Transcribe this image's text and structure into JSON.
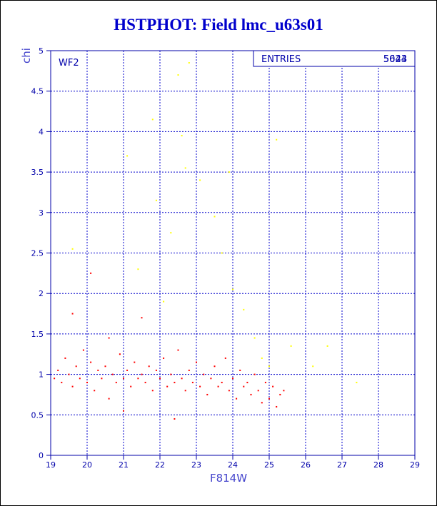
{
  "chart_data": {
    "type": "scatter",
    "title": "HSTPHOT: Field lmc_u63s01",
    "xlabel": "F814W",
    "ylabel": "chi",
    "xlim": [
      19,
      29
    ],
    "ylim": [
      0,
      5
    ],
    "xticks": [
      "19",
      "20",
      "21",
      "22",
      "23",
      "24",
      "25",
      "26",
      "27",
      "28",
      "29"
    ],
    "yticks": [
      "0",
      "0.5",
      "1",
      "1.5",
      "2",
      "2.5",
      "3",
      "3.5",
      "4",
      "4.5",
      "5"
    ],
    "grid": true,
    "panel_label": "WF2",
    "stats_box": {
      "label": "ENTRIES",
      "values": [
        "5024",
        "5643"
      ]
    },
    "series": [
      {
        "color": "#ff0000",
        "description_points": "dense red points",
        "points": [
          [
            19.1,
            0.95
          ],
          [
            19.2,
            1.05
          ],
          [
            19.3,
            0.9
          ],
          [
            19.4,
            1.2
          ],
          [
            19.5,
            1.0
          ],
          [
            19.6,
            0.85
          ],
          [
            19.6,
            1.75
          ],
          [
            19.7,
            1.1
          ],
          [
            19.8,
            0.95
          ],
          [
            19.9,
            1.3
          ],
          [
            20.0,
            0.9
          ],
          [
            20.1,
            1.15
          ],
          [
            20.1,
            2.25
          ],
          [
            20.2,
            0.8
          ],
          [
            20.3,
            1.05
          ],
          [
            20.4,
            0.95
          ],
          [
            20.5,
            1.1
          ],
          [
            20.6,
            0.7
          ],
          [
            20.6,
            1.45
          ],
          [
            20.7,
            1.0
          ],
          [
            20.8,
            0.9
          ],
          [
            20.9,
            1.25
          ],
          [
            21.0,
            0.95
          ],
          [
            21.0,
            0.55
          ],
          [
            21.1,
            1.05
          ],
          [
            21.2,
            0.85
          ],
          [
            21.3,
            1.15
          ],
          [
            21.4,
            0.95
          ],
          [
            21.5,
            1.0
          ],
          [
            21.5,
            1.7
          ],
          [
            21.6,
            0.9
          ],
          [
            21.7,
            1.1
          ],
          [
            21.8,
            0.8
          ],
          [
            21.9,
            1.05
          ],
          [
            22.0,
            0.95
          ],
          [
            22.1,
            1.2
          ],
          [
            22.2,
            0.85
          ],
          [
            22.3,
            1.0
          ],
          [
            22.4,
            0.9
          ],
          [
            22.4,
            0.45
          ],
          [
            22.5,
            1.3
          ],
          [
            22.6,
            0.95
          ],
          [
            22.7,
            0.8
          ],
          [
            22.8,
            1.05
          ],
          [
            22.9,
            0.9
          ],
          [
            23.0,
            1.15
          ],
          [
            23.1,
            0.85
          ],
          [
            23.2,
            1.0
          ],
          [
            23.3,
            0.75
          ],
          [
            23.4,
            0.95
          ],
          [
            23.5,
            1.1
          ],
          [
            23.6,
            0.85
          ],
          [
            23.7,
            0.9
          ],
          [
            23.8,
            1.2
          ],
          [
            23.9,
            0.8
          ],
          [
            24.0,
            0.95
          ],
          [
            24.1,
            0.7
          ],
          [
            24.2,
            1.05
          ],
          [
            24.3,
            0.85
          ],
          [
            24.4,
            0.9
          ],
          [
            24.5,
            0.75
          ],
          [
            24.6,
            1.0
          ],
          [
            24.7,
            0.8
          ],
          [
            24.8,
            0.65
          ],
          [
            24.9,
            0.9
          ],
          [
            25.0,
            0.7
          ],
          [
            25.1,
            0.85
          ],
          [
            25.2,
            0.6
          ],
          [
            25.3,
            0.75
          ],
          [
            25.4,
            0.8
          ]
        ]
      },
      {
        "color": "#ffff00",
        "description_points": "sparse yellow points",
        "points": [
          [
            19.6,
            2.55
          ],
          [
            21.1,
            3.7
          ],
          [
            21.8,
            4.15
          ],
          [
            21.9,
            3.15
          ],
          [
            22.3,
            2.75
          ],
          [
            22.5,
            4.7
          ],
          [
            22.6,
            3.95
          ],
          [
            22.7,
            3.55
          ],
          [
            22.8,
            4.85
          ],
          [
            23.1,
            3.4
          ],
          [
            23.5,
            2.95
          ],
          [
            23.7,
            2.5
          ],
          [
            24.0,
            2.05
          ],
          [
            24.3,
            1.8
          ],
          [
            24.6,
            1.45
          ],
          [
            24.8,
            1.2
          ],
          [
            25.0,
            1.1
          ],
          [
            25.2,
            3.9
          ],
          [
            25.6,
            1.35
          ],
          [
            26.2,
            1.1
          ],
          [
            26.6,
            1.35
          ],
          [
            27.4,
            0.9
          ],
          [
            21.4,
            2.3
          ],
          [
            22.1,
            1.9
          ],
          [
            23.9,
            3.5
          ]
        ]
      }
    ]
  }
}
